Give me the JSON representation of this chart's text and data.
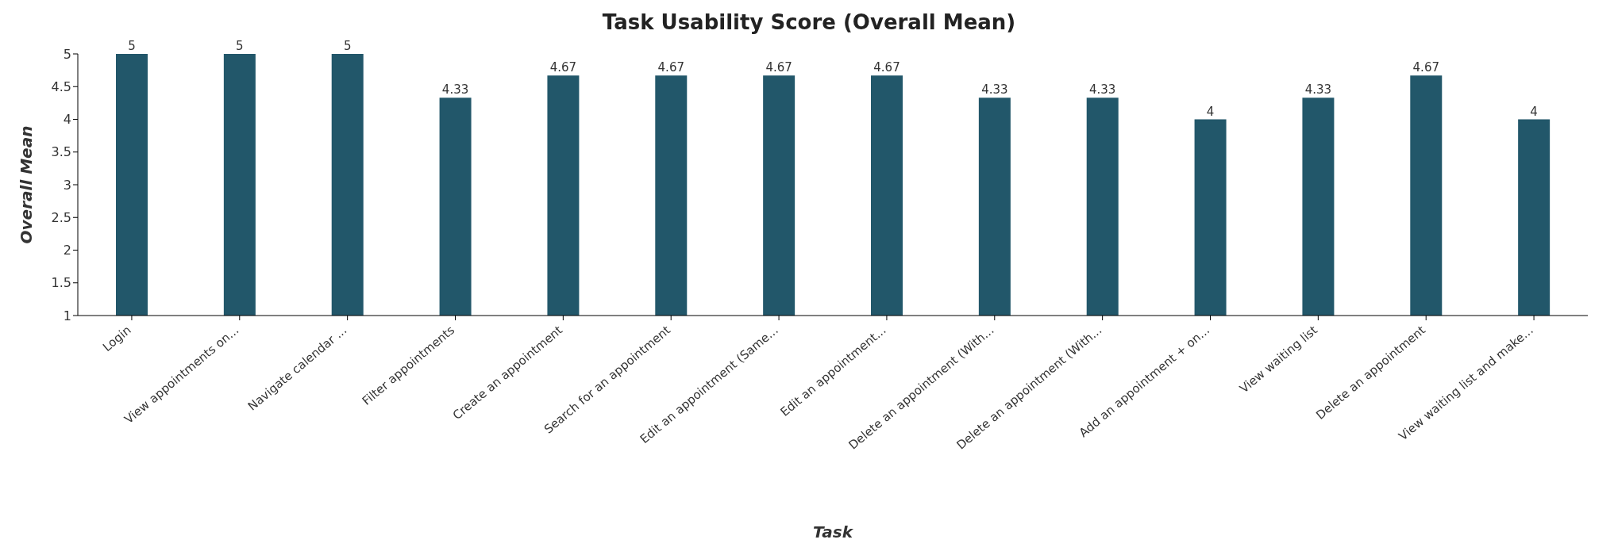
{
  "chart_data": {
    "type": "bar",
    "title": "Task Usability Score (Overall Mean)",
    "xlabel": "Task",
    "ylabel": "Overall Mean",
    "categories": [
      "Login",
      "View appointments on...",
      "Navigate calendar ...",
      "Filter appointments",
      "Create an appointment",
      "Search for an appointment",
      "Edit an appointment (Same...",
      "Edit an appointment...",
      "Delete an appointment (With...",
      "Delete an appointment (With...",
      "Add an appointment + on...",
      "View waiting list",
      "Delete an appointment",
      "View waiting list and make..."
    ],
    "values": [
      5,
      5,
      5,
      4.33,
      4.67,
      4.67,
      4.67,
      4.67,
      4.33,
      4.33,
      4,
      4.33,
      4.67,
      4
    ],
    "color": "#22576a",
    "data_labels": true,
    "ylim": [
      1,
      5
    ],
    "yticks": [
      1,
      1.5,
      2,
      2.5,
      3,
      3.5,
      4,
      4.5,
      5
    ],
    "grid": false,
    "legend": false
  }
}
